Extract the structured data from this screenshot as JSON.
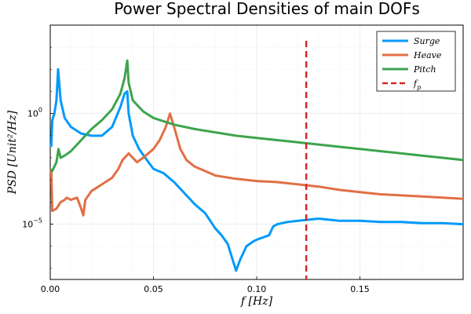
{
  "chart_data": {
    "type": "line",
    "title": "Power Spectral Densities of main DOFs",
    "xlabel": "f [Hz]",
    "ylabel": "PSD [Unit²/Hz]",
    "xlim": [
      0,
      0.2
    ],
    "ylog": true,
    "ylim_exp": [
      -7.5,
      4
    ],
    "x_ticks": [
      {
        "value": 0,
        "label": "0.00"
      },
      {
        "value": 0.05,
        "label": "0.05"
      },
      {
        "value": 0.1,
        "label": "0.10"
      },
      {
        "value": 0.15,
        "label": "0.15"
      }
    ],
    "y_ticks": [
      {
        "exp": 0,
        "label_base": "10",
        "label_exp": "0"
      },
      {
        "exp": -5,
        "label_base": "10",
        "label_exp": "−5"
      }
    ],
    "grid": true,
    "legend_position": "top-right",
    "series": [
      {
        "name": "Surge",
        "color": "#009AFA",
        "style": "solid",
        "points": [
          [
            0.0005,
            -1.5
          ],
          [
            0.001,
            -0.3
          ],
          [
            0.002,
            0.0
          ],
          [
            0.003,
            0.6
          ],
          [
            0.0038,
            2.0
          ],
          [
            0.005,
            0.6
          ],
          [
            0.007,
            -0.2
          ],
          [
            0.01,
            -0.6
          ],
          [
            0.015,
            -0.9
          ],
          [
            0.02,
            -1.0
          ],
          [
            0.025,
            -1.0
          ],
          [
            0.03,
            -0.6
          ],
          [
            0.034,
            0.3
          ],
          [
            0.036,
            0.9
          ],
          [
            0.0373,
            1.0
          ],
          [
            0.038,
            0.0
          ],
          [
            0.04,
            -1.0
          ],
          [
            0.043,
            -1.6
          ],
          [
            0.046,
            -2.0
          ],
          [
            0.05,
            -2.5
          ],
          [
            0.055,
            -2.7
          ],
          [
            0.06,
            -3.1
          ],
          [
            0.065,
            -3.6
          ],
          [
            0.07,
            -4.1
          ],
          [
            0.075,
            -4.5
          ],
          [
            0.08,
            -5.2
          ],
          [
            0.083,
            -5.5
          ],
          [
            0.086,
            -5.9
          ],
          [
            0.088,
            -6.5
          ],
          [
            0.09,
            -7.1
          ],
          [
            0.092,
            -6.6
          ],
          [
            0.095,
            -6.0
          ],
          [
            0.098,
            -5.8
          ],
          [
            0.1,
            -5.7
          ],
          [
            0.103,
            -5.6
          ],
          [
            0.106,
            -5.5
          ],
          [
            0.108,
            -5.1
          ],
          [
            0.11,
            -5.0
          ],
          [
            0.115,
            -4.9
          ],
          [
            0.12,
            -4.85
          ],
          [
            0.125,
            -4.8
          ],
          [
            0.13,
            -4.75
          ],
          [
            0.14,
            -4.85
          ],
          [
            0.15,
            -4.85
          ],
          [
            0.16,
            -4.9
          ],
          [
            0.17,
            -4.9
          ],
          [
            0.18,
            -4.95
          ],
          [
            0.19,
            -4.95
          ],
          [
            0.2,
            -5.0
          ]
        ]
      },
      {
        "name": "Heave",
        "color": "#E26F46",
        "style": "solid",
        "points": [
          [
            0.0005,
            -2.5
          ],
          [
            0.001,
            -4.4
          ],
          [
            0.003,
            -4.3
          ],
          [
            0.005,
            -4.0
          ],
          [
            0.007,
            -3.9
          ],
          [
            0.008,
            -3.8
          ],
          [
            0.01,
            -3.9
          ],
          [
            0.013,
            -3.8
          ],
          [
            0.015,
            -4.3
          ],
          [
            0.016,
            -4.6
          ],
          [
            0.017,
            -3.9
          ],
          [
            0.02,
            -3.5
          ],
          [
            0.025,
            -3.2
          ],
          [
            0.03,
            -2.9
          ],
          [
            0.033,
            -2.5
          ],
          [
            0.035,
            -2.1
          ],
          [
            0.038,
            -1.8
          ],
          [
            0.042,
            -2.2
          ],
          [
            0.045,
            -2.0
          ],
          [
            0.05,
            -1.6
          ],
          [
            0.053,
            -1.2
          ],
          [
            0.056,
            -0.6
          ],
          [
            0.058,
            0.0
          ],
          [
            0.06,
            -0.6
          ],
          [
            0.063,
            -1.6
          ],
          [
            0.066,
            -2.1
          ],
          [
            0.07,
            -2.4
          ],
          [
            0.075,
            -2.6
          ],
          [
            0.08,
            -2.8
          ],
          [
            0.09,
            -2.95
          ],
          [
            0.1,
            -3.05
          ],
          [
            0.11,
            -3.1
          ],
          [
            0.12,
            -3.2
          ],
          [
            0.13,
            -3.3
          ],
          [
            0.14,
            -3.45
          ],
          [
            0.15,
            -3.55
          ],
          [
            0.16,
            -3.65
          ],
          [
            0.17,
            -3.7
          ],
          [
            0.18,
            -3.75
          ],
          [
            0.19,
            -3.8
          ],
          [
            0.2,
            -3.85
          ]
        ]
      },
      {
        "name": "Pitch",
        "color": "#3DA44D",
        "style": "solid",
        "points": [
          [
            0.0005,
            -2.5
          ],
          [
            0.001,
            -2.6
          ],
          [
            0.003,
            -2.2
          ],
          [
            0.004,
            -1.6
          ],
          [
            0.005,
            -2.0
          ],
          [
            0.007,
            -1.9
          ],
          [
            0.01,
            -1.7
          ],
          [
            0.015,
            -1.2
          ],
          [
            0.02,
            -0.7
          ],
          [
            0.025,
            -0.3
          ],
          [
            0.03,
            0.2
          ],
          [
            0.034,
            0.9
          ],
          [
            0.036,
            1.6
          ],
          [
            0.0373,
            2.4
          ],
          [
            0.038,
            1.4
          ],
          [
            0.04,
            0.6
          ],
          [
            0.045,
            0.1
          ],
          [
            0.05,
            -0.2
          ],
          [
            0.06,
            -0.5
          ],
          [
            0.07,
            -0.7
          ],
          [
            0.08,
            -0.85
          ],
          [
            0.09,
            -1.0
          ],
          [
            0.1,
            -1.1
          ],
          [
            0.11,
            -1.2
          ],
          [
            0.12,
            -1.3
          ],
          [
            0.13,
            -1.4
          ],
          [
            0.14,
            -1.5
          ],
          [
            0.15,
            -1.6
          ],
          [
            0.16,
            -1.7
          ],
          [
            0.17,
            -1.8
          ],
          [
            0.18,
            -1.9
          ],
          [
            0.19,
            -2.0
          ],
          [
            0.2,
            -2.1
          ]
        ]
      },
      {
        "name": "fp",
        "label_base": "f",
        "label_sub": "p",
        "color": "#D62728",
        "style": "dashed",
        "vline_x": 0.124
      }
    ]
  }
}
